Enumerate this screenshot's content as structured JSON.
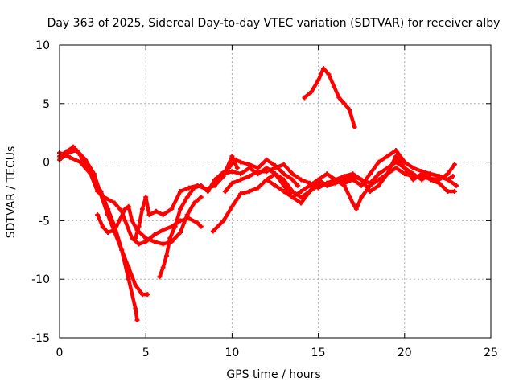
{
  "chart_data": {
    "type": "line",
    "title": "Day 363 of 2025, Sidereal Day-to-day VTEC variation (SDTVAR) for receiver alby",
    "xlabel": "GPS time / hours",
    "ylabel": "SDTVAR / TECUs",
    "xlim": [
      0,
      25
    ],
    "ylim": [
      -15,
      10
    ],
    "xticks": [
      0,
      5,
      10,
      15,
      20,
      25
    ],
    "yticks": [
      -15,
      -10,
      -5,
      0,
      5,
      10
    ],
    "grid": true,
    "series_color": "#ff0000",
    "series": [
      {
        "name": "track-1",
        "points": [
          [
            0,
            0.5
          ],
          [
            0.4,
            0.9
          ],
          [
            0.8,
            1.3
          ],
          [
            1.2,
            0.6
          ],
          [
            1.6,
            -0.5
          ],
          [
            2.0,
            -1.5
          ],
          [
            2.4,
            -2.5
          ],
          [
            2.8,
            -4.0
          ],
          [
            3.2,
            -5.5
          ],
          [
            3.6,
            -7.5
          ],
          [
            4.0,
            -10.0
          ],
          [
            4.4,
            -12.5
          ],
          [
            4.5,
            -13.5
          ]
        ]
      },
      {
        "name": "track-2",
        "points": [
          [
            0,
            0.2
          ],
          [
            0.5,
            0.8
          ],
          [
            1.0,
            1.0
          ],
          [
            1.5,
            0.2
          ],
          [
            2.0,
            -1.0
          ],
          [
            2.4,
            -2.8
          ],
          [
            2.8,
            -4.5
          ],
          [
            3.2,
            -6.0
          ],
          [
            3.6,
            -7.5
          ],
          [
            4.0,
            -9.0
          ],
          [
            4.4,
            -10.5
          ],
          [
            4.8,
            -11.3
          ],
          [
            5.1,
            -11.3
          ]
        ]
      },
      {
        "name": "track-3",
        "points": [
          [
            0,
            0.8
          ],
          [
            0.6,
            0.4
          ],
          [
            1.2,
            0.0
          ],
          [
            1.8,
            -1.0
          ],
          [
            2.2,
            -2.5
          ],
          [
            2.6,
            -3.0
          ],
          [
            3.2,
            -3.5
          ],
          [
            3.6,
            -4.2
          ],
          [
            3.8,
            -5.0
          ],
          [
            4.2,
            -6.5
          ],
          [
            4.6,
            -7.0
          ],
          [
            5.0,
            -6.8
          ],
          [
            5.5,
            -6.2
          ],
          [
            6.0,
            -5.8
          ],
          [
            6.5,
            -5.5
          ],
          [
            7.0,
            -5.0
          ],
          [
            7.5,
            -4.8
          ],
          [
            8.0,
            -5.2
          ],
          [
            8.2,
            -5.5
          ]
        ]
      },
      {
        "name": "track-4",
        "points": [
          [
            2.2,
            -4.5
          ],
          [
            2.5,
            -5.5
          ],
          [
            2.8,
            -6.0
          ],
          [
            3.2,
            -5.8
          ],
          [
            3.8,
            -4.0
          ],
          [
            4.0,
            -3.8
          ],
          [
            4.2,
            -5.0
          ],
          [
            4.5,
            -5.8
          ],
          [
            5.0,
            -6.5
          ],
          [
            5.5,
            -6.8
          ],
          [
            6.0,
            -7.0
          ],
          [
            6.5,
            -6.8
          ],
          [
            7.0,
            -6.0
          ],
          [
            7.4,
            -4.5
          ],
          [
            7.8,
            -3.5
          ],
          [
            8.2,
            -3.0
          ]
        ]
      },
      {
        "name": "track-5",
        "points": [
          [
            4.4,
            -6.5
          ],
          [
            4.6,
            -5.5
          ],
          [
            4.8,
            -4.0
          ],
          [
            5.0,
            -3.0
          ],
          [
            5.2,
            -4.5
          ],
          [
            5.6,
            -4.2
          ],
          [
            6.0,
            -4.5
          ],
          [
            6.5,
            -4.0
          ],
          [
            7.0,
            -2.5
          ],
          [
            7.5,
            -2.2
          ],
          [
            8.0,
            -2.0
          ],
          [
            8.5,
            -2.3
          ],
          [
            9.0,
            -2.0
          ],
          [
            9.5,
            -1.2
          ],
          [
            10.0,
            0.5
          ],
          [
            10.3,
            -0.5
          ]
        ]
      },
      {
        "name": "track-6",
        "points": [
          [
            5.8,
            -9.8
          ],
          [
            6.0,
            -9.0
          ],
          [
            6.2,
            -8.0
          ],
          [
            6.4,
            -6.5
          ],
          [
            6.7,
            -5.5
          ],
          [
            7.0,
            -4.0
          ],
          [
            7.4,
            -3.0
          ],
          [
            7.8,
            -2.2
          ],
          [
            8.2,
            -2.0
          ],
          [
            8.6,
            -2.5
          ],
          [
            9.0,
            -1.5
          ],
          [
            9.4,
            -1.0
          ],
          [
            9.8,
            -0.5
          ],
          [
            10.2,
            0.2
          ],
          [
            10.5,
            0.0
          ],
          [
            11.0,
            -0.2
          ],
          [
            11.5,
            -0.5
          ],
          [
            12.0,
            0.2
          ],
          [
            12.5,
            -0.3
          ],
          [
            13.0,
            -1.0
          ],
          [
            13.5,
            -1.5
          ],
          [
            13.8,
            -2.0
          ]
        ]
      },
      {
        "name": "track-7",
        "points": [
          [
            8.9,
            -5.9
          ],
          [
            9.5,
            -5.0
          ],
          [
            10.0,
            -3.8
          ],
          [
            10.5,
            -2.7
          ],
          [
            11.0,
            -2.5
          ],
          [
            11.5,
            -2.2
          ],
          [
            12.0,
            -1.5
          ],
          [
            12.5,
            -1.0
          ],
          [
            13.0,
            -1.5
          ],
          [
            13.5,
            -2.5
          ],
          [
            14.0,
            -3.0
          ],
          [
            14.5,
            -2.5
          ],
          [
            15.0,
            -2.0
          ],
          [
            15.5,
            -1.8
          ],
          [
            16.0,
            -1.5
          ],
          [
            16.5,
            -2.0
          ],
          [
            17.0,
            -3.5
          ],
          [
            17.2,
            -4.0
          ],
          [
            17.5,
            -3.0
          ],
          [
            18.0,
            -2.0
          ],
          [
            18.5,
            -1.5
          ],
          [
            19.0,
            -1.0
          ],
          [
            19.5,
            0.5
          ],
          [
            20.0,
            -0.5
          ],
          [
            20.5,
            -1.5
          ],
          [
            21.0,
            -1.0
          ],
          [
            21.5,
            -1.5
          ],
          [
            22.0,
            -1.8
          ],
          [
            22.5,
            -2.5
          ],
          [
            22.9,
            -2.5
          ]
        ]
      },
      {
        "name": "track-8",
        "points": [
          [
            9.0,
            -1.8
          ],
          [
            9.5,
            -1.0
          ],
          [
            10.0,
            -0.8
          ],
          [
            10.5,
            -1.0
          ],
          [
            11.0,
            -0.5
          ],
          [
            11.5,
            -1.0
          ],
          [
            12.0,
            -0.5
          ],
          [
            12.5,
            -1.0
          ],
          [
            13.0,
            -2.0
          ],
          [
            13.5,
            -3.0
          ],
          [
            14.0,
            -3.5
          ],
          [
            14.5,
            -2.5
          ],
          [
            15.0,
            -1.5
          ],
          [
            15.5,
            -1.0
          ],
          [
            16.0,
            -1.5
          ],
          [
            16.5,
            -1.8
          ],
          [
            17.0,
            -1.5
          ],
          [
            17.5,
            -2.0
          ],
          [
            18.0,
            -1.0
          ],
          [
            18.5,
            0.0
          ],
          [
            19.0,
            0.5
          ],
          [
            19.5,
            1.0
          ],
          [
            20.0,
            0.0
          ],
          [
            20.5,
            -0.5
          ],
          [
            21.0,
            -0.8
          ],
          [
            21.5,
            -1.0
          ],
          [
            22.0,
            -1.2
          ],
          [
            22.5,
            -1.5
          ],
          [
            23.0,
            -2.0
          ]
        ]
      },
      {
        "name": "track-9",
        "points": [
          [
            9.6,
            -2.5
          ],
          [
            10.0,
            -1.8
          ],
          [
            10.5,
            -1.5
          ],
          [
            11.0,
            -1.2
          ],
          [
            11.5,
            -0.8
          ],
          [
            12.0,
            -0.8
          ],
          [
            12.5,
            -0.5
          ],
          [
            13.0,
            -0.2
          ],
          [
            13.5,
            -1.0
          ],
          [
            14.0,
            -1.5
          ],
          [
            14.5,
            -1.8
          ],
          [
            15.0,
            -2.2
          ],
          [
            15.5,
            -1.8
          ],
          [
            16.0,
            -1.5
          ],
          [
            16.5,
            -1.2
          ],
          [
            17.0,
            -1.0
          ],
          [
            17.5,
            -1.5
          ],
          [
            18.0,
            -2.5
          ],
          [
            18.5,
            -2.0
          ],
          [
            19.0,
            -1.0
          ],
          [
            19.5,
            -0.5
          ],
          [
            20.0,
            -1.0
          ],
          [
            20.5,
            -1.2
          ],
          [
            21.0,
            -1.3
          ],
          [
            21.5,
            -1.4
          ],
          [
            22.0,
            -1.5
          ],
          [
            22.5,
            -1.0
          ],
          [
            22.9,
            -0.2
          ]
        ]
      },
      {
        "name": "track-10",
        "points": [
          [
            12.0,
            -1.5
          ],
          [
            12.5,
            -2.0
          ],
          [
            13.0,
            -2.5
          ],
          [
            13.5,
            -3.0
          ],
          [
            14.0,
            -2.5
          ],
          [
            14.5,
            -2.0
          ],
          [
            15.0,
            -1.5
          ],
          [
            15.5,
            -2.0
          ],
          [
            16.0,
            -1.8
          ],
          [
            16.5,
            -1.5
          ],
          [
            17.0,
            -1.2
          ],
          [
            17.5,
            -1.5
          ],
          [
            18.0,
            -1.8
          ],
          [
            18.5,
            -1.0
          ],
          [
            19.0,
            -0.5
          ],
          [
            19.5,
            0.0
          ],
          [
            20.0,
            -0.5
          ],
          [
            20.5,
            -1.0
          ],
          [
            21.0,
            -1.5
          ],
          [
            21.5,
            -1.0
          ],
          [
            22.0,
            -1.2
          ],
          [
            22.5,
            -1.5
          ],
          [
            22.8,
            -1.2
          ]
        ]
      },
      {
        "name": "track-11",
        "points": [
          [
            14.2,
            5.5
          ],
          [
            14.6,
            6.0
          ],
          [
            15.0,
            7.0
          ],
          [
            15.3,
            8.0
          ],
          [
            15.6,
            7.5
          ],
          [
            15.9,
            6.5
          ],
          [
            16.2,
            5.5
          ],
          [
            16.5,
            5.0
          ],
          [
            16.8,
            4.5
          ],
          [
            17.1,
            3.0
          ]
        ]
      }
    ]
  }
}
